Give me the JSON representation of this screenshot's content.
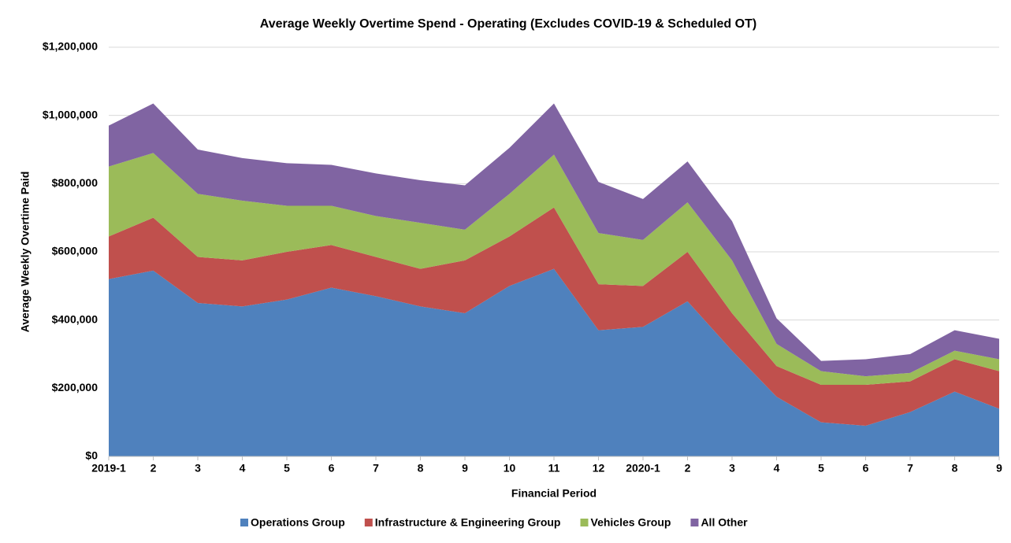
{
  "chart_data": {
    "type": "stacked_area",
    "title": "Average Weekly Overtime Spend - Operating (Excludes COVID-19 & Scheduled OT)",
    "x_label": "Financial Period",
    "y_label": "Average Weekly Overtime Paid",
    "categories": [
      "2019-1",
      "2",
      "3",
      "4",
      "5",
      "6",
      "7",
      "8",
      "9",
      "10",
      "11",
      "12",
      "2020-1",
      "2",
      "3",
      "4",
      "5",
      "6",
      "7",
      "8",
      "9"
    ],
    "series": [
      {
        "name": "Operations Group",
        "color": "#4f81bd",
        "values": [
          520000,
          545000,
          450000,
          440000,
          460000,
          495000,
          470000,
          440000,
          420000,
          500000,
          550000,
          370000,
          380000,
          455000,
          310000,
          175000,
          100000,
          90000,
          130000,
          190000,
          140000
        ]
      },
      {
        "name": "Infrastructure & Engineering Group",
        "color": "#c0504d",
        "values": [
          125000,
          155000,
          135000,
          135000,
          140000,
          125000,
          115000,
          110000,
          155000,
          145000,
          180000,
          135000,
          120000,
          145000,
          110000,
          90000,
          110000,
          120000,
          90000,
          95000,
          110000
        ]
      },
      {
        "name": "Vehicles Group",
        "color": "#9bbb59",
        "values": [
          205000,
          190000,
          185000,
          175000,
          135000,
          115000,
          120000,
          135000,
          90000,
          125000,
          155000,
          150000,
          135000,
          145000,
          155000,
          65000,
          40000,
          25000,
          25000,
          25000,
          35000
        ]
      },
      {
        "name": "All Other",
        "color": "#8064a2",
        "values": [
          120000,
          145000,
          130000,
          125000,
          125000,
          120000,
          125000,
          125000,
          130000,
          135000,
          150000,
          150000,
          120000,
          120000,
          115000,
          75000,
          30000,
          50000,
          55000,
          60000,
          60000
        ]
      }
    ],
    "ylim": [
      0,
      1200000
    ],
    "yticks": [
      {
        "value": 0,
        "label": "$0"
      },
      {
        "value": 200000,
        "label": "$200,000"
      },
      {
        "value": 400000,
        "label": "$400,000"
      },
      {
        "value": 600000,
        "label": "$600,000"
      },
      {
        "value": 800000,
        "label": "$800,000"
      },
      {
        "value": 1000000,
        "label": "$1,000,000"
      },
      {
        "value": 1200000,
        "label": "$1,200,000"
      }
    ],
    "grid": true,
    "legend": "bottom"
  }
}
